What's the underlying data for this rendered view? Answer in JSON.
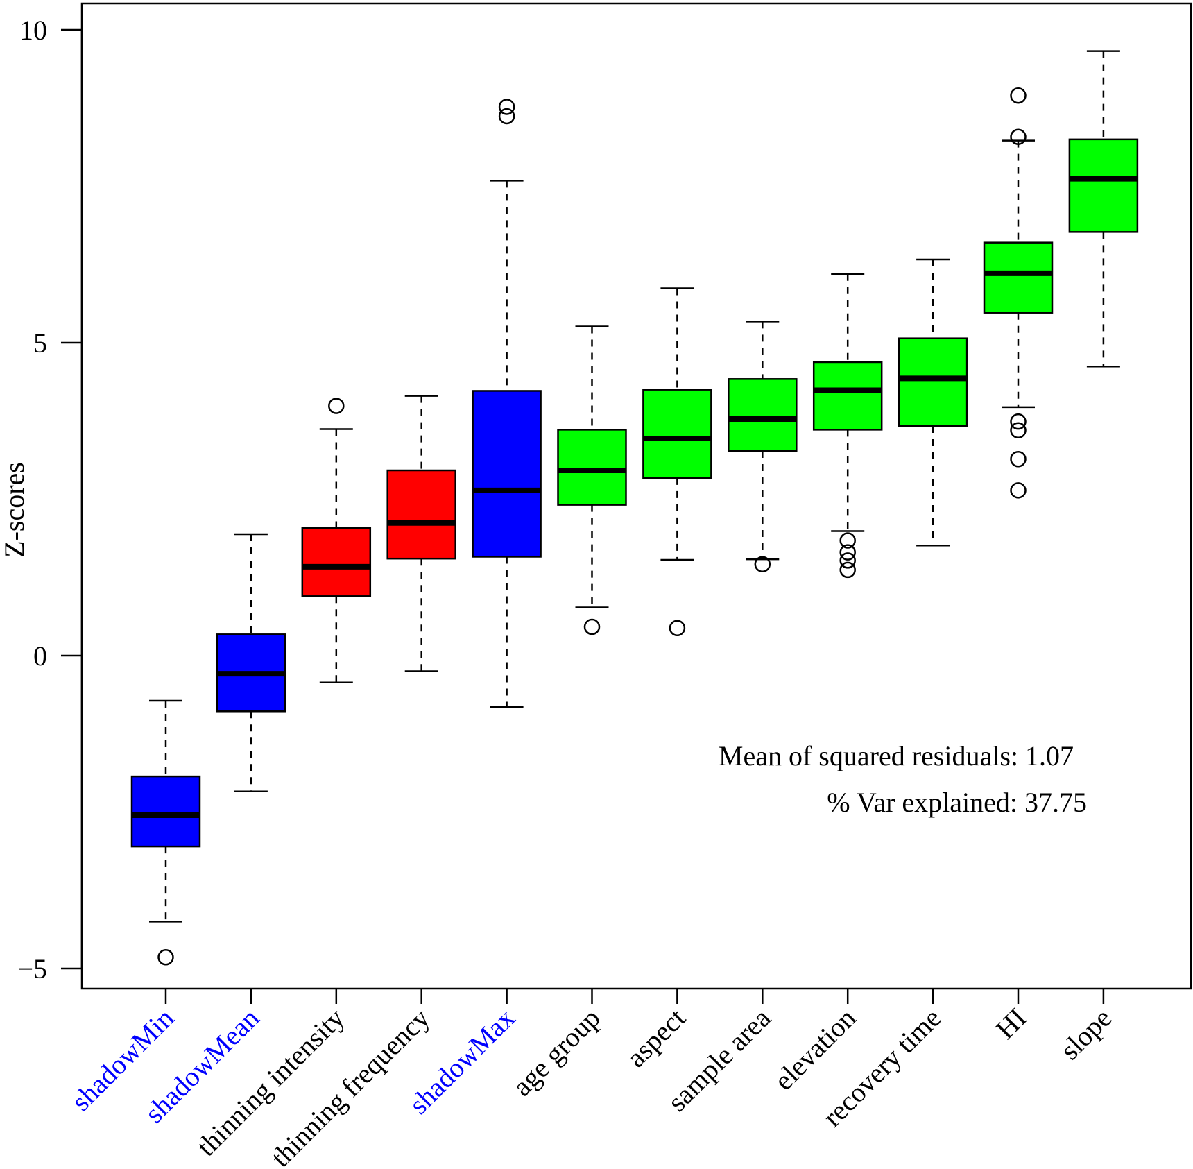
{
  "chart_data": {
    "type": "boxplot",
    "ylabel": "Z-scores",
    "ylim": [
      -5.4,
      10.2
    ],
    "y_ticks": [
      {
        "value": -5,
        "label": "−5"
      },
      {
        "value": 0,
        "label": "0"
      },
      {
        "value": 5,
        "label": "5"
      },
      {
        "value": 10,
        "label": "10"
      }
    ],
    "annotations": [
      "Mean of squared residuals: 1.07",
      "% Var explained: 37.75"
    ],
    "label_colors": {
      "shadow": "#0000ff",
      "normal": "#000000"
    },
    "boxes": [
      {
        "label": "shadowMin",
        "color": "#0000ff",
        "label_color": "#0000ff",
        "whisker_low": -4.25,
        "q1": -3.05,
        "median": -2.55,
        "q3": -1.93,
        "whisker_high": -0.72,
        "outliers": [
          -4.82
        ]
      },
      {
        "label": "shadowMean",
        "color": "#0000ff",
        "label_color": "#0000ff",
        "whisker_low": -2.17,
        "q1": -0.89,
        "median": -0.29,
        "q3": 0.34,
        "whisker_high": 1.94,
        "outliers": []
      },
      {
        "label": "thinning intensity",
        "color": "#ff0000",
        "label_color": "#000000",
        "whisker_low": -0.43,
        "q1": 0.95,
        "median": 1.42,
        "q3": 2.04,
        "whisker_high": 3.62,
        "outliers": [
          3.99
        ]
      },
      {
        "label": "thinning frequency",
        "color": "#ff0000",
        "label_color": "#000000",
        "whisker_low": -0.25,
        "q1": 1.55,
        "median": 2.12,
        "q3": 2.96,
        "whisker_high": 4.15,
        "outliers": []
      },
      {
        "label": "shadowMax",
        "color": "#0000ff",
        "label_color": "#0000ff",
        "whisker_low": -0.82,
        "q1": 1.58,
        "median": 2.64,
        "q3": 4.23,
        "whisker_high": 7.59,
        "outliers": [
          8.62,
          8.77
        ]
      },
      {
        "label": "age group",
        "color": "#00ff00",
        "label_color": "#000000",
        "whisker_low": 0.77,
        "q1": 2.41,
        "median": 2.96,
        "q3": 3.61,
        "whisker_high": 5.26,
        "outliers": [
          0.46
        ]
      },
      {
        "label": "aspect",
        "color": "#00ff00",
        "label_color": "#000000",
        "whisker_low": 1.53,
        "q1": 2.84,
        "median": 3.47,
        "q3": 4.25,
        "whisker_high": 5.87,
        "outliers": [
          0.44
        ]
      },
      {
        "label": "sample area",
        "color": "#00ff00",
        "label_color": "#000000",
        "whisker_low": 1.54,
        "q1": 3.27,
        "median": 3.78,
        "q3": 4.42,
        "whisker_high": 5.34,
        "outliers": [
          1.46
        ]
      },
      {
        "label": "elevation",
        "color": "#00ff00",
        "label_color": "#000000",
        "whisker_low": 1.99,
        "q1": 3.61,
        "median": 4.24,
        "q3": 4.69,
        "whisker_high": 6.1,
        "outliers": [
          1.37,
          1.52,
          1.65,
          1.84
        ]
      },
      {
        "label": "recovery time",
        "color": "#00ff00",
        "label_color": "#000000",
        "whisker_low": 1.76,
        "q1": 3.67,
        "median": 4.43,
        "q3": 5.07,
        "whisker_high": 6.33,
        "outliers": []
      },
      {
        "label": "HI",
        "color": "#00ff00",
        "label_color": "#000000",
        "whisker_low": 3.97,
        "q1": 5.48,
        "median": 6.11,
        "q3": 6.6,
        "whisker_high": 8.23,
        "outliers": [
          2.64,
          3.14,
          3.6,
          3.74,
          8.29,
          8.95
        ]
      },
      {
        "label": "slope",
        "color": "#00ff00",
        "label_color": "#000000",
        "whisker_low": 4.62,
        "q1": 6.77,
        "median": 7.62,
        "q3": 8.25,
        "whisker_high": 9.66,
        "outliers": []
      }
    ]
  }
}
